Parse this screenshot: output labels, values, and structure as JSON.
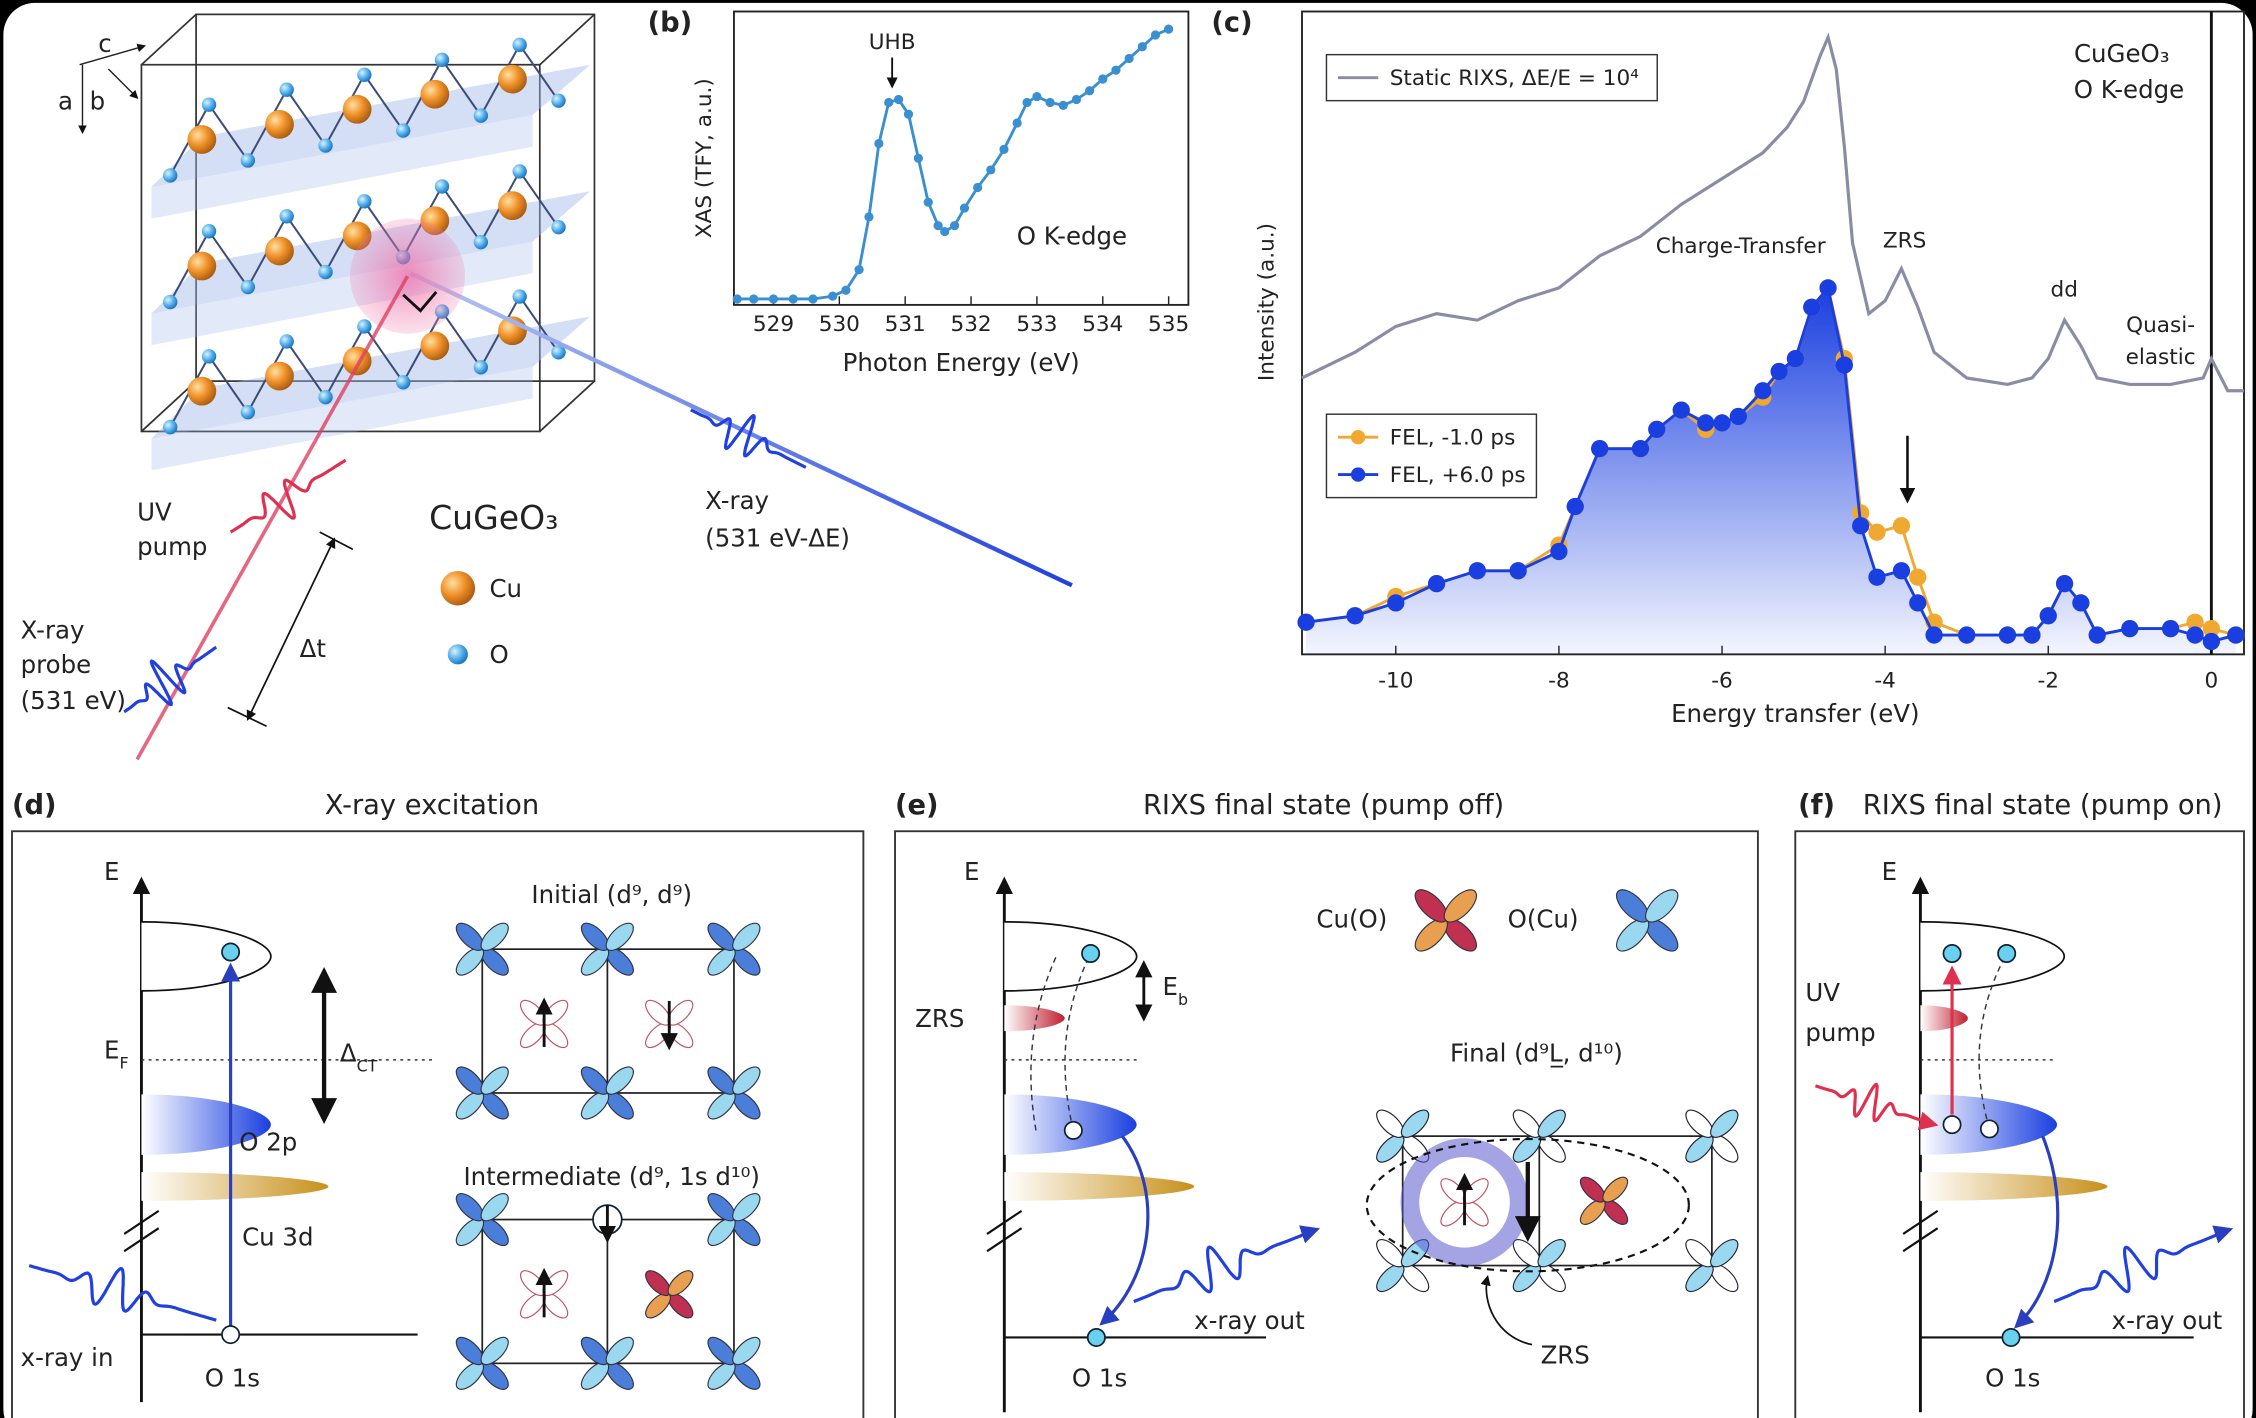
{
  "chart_data": [
    {
      "type": "line",
      "panel_label": "(b)",
      "y_label": "XAS (TFY, a.u.)",
      "x_label": "Photon Energy (eV)",
      "annotations": [
        "UHB",
        "O K-edge"
      ],
      "color": "#3a8fd0",
      "x": [
        528.45,
        528.7,
        529,
        529.3,
        529.6,
        529.9,
        530.1,
        530.3,
        530.45,
        530.6,
        530.75,
        530.9,
        531.05,
        531.2,
        531.35,
        531.5,
        531.6,
        531.75,
        531.9,
        532.1,
        532.3,
        532.5,
        532.7,
        532.85,
        533,
        533.2,
        533.4,
        533.6,
        533.8,
        534,
        534.2,
        534.4,
        534.6,
        534.8,
        535
      ],
      "values": [
        0.02,
        0.02,
        0.02,
        0.02,
        0.02,
        0.03,
        0.05,
        0.12,
        0.3,
        0.55,
        0.69,
        0.7,
        0.65,
        0.5,
        0.35,
        0.27,
        0.25,
        0.27,
        0.33,
        0.4,
        0.46,
        0.53,
        0.62,
        0.69,
        0.71,
        0.69,
        0.68,
        0.7,
        0.73,
        0.77,
        0.8,
        0.84,
        0.88,
        0.92,
        0.94
      ],
      "xlim": [
        528.4,
        535.3
      ],
      "ylim": [
        0,
        1
      ],
      "xticks": [
        529,
        530,
        531,
        532,
        533,
        534,
        535
      ]
    },
    {
      "type": "line",
      "panel_label": "(c)",
      "y_label": "Intensity (a.u.)",
      "x_label": "Energy transfer (eV)",
      "annotations": {
        "charge_transfer": "Charge-Transfer",
        "zrs": "ZRS",
        "dd": "dd",
        "quasi_elastic": [
          "Quasi-",
          "elastic"
        ],
        "material": "CuGeO₃",
        "edge": "O K-edge"
      },
      "series": [
        {
          "name": "Static RIXS, ΔE/E = 10⁴",
          "color": "#8a8ca6",
          "markers": false,
          "x": [
            -11.15,
            -10.5,
            -10,
            -9.5,
            -9,
            -8.5,
            -8,
            -7.5,
            -7,
            -6.5,
            -6,
            -5.5,
            -5.2,
            -5,
            -4.8,
            -4.7,
            -4.6,
            -4.5,
            -4.4,
            -4.2,
            -4,
            -3.8,
            -3.6,
            -3.4,
            -3,
            -2.5,
            -2.2,
            -2,
            -1.8,
            -1.6,
            -1.4,
            -1,
            -0.5,
            -0.1,
            0,
            0.2,
            0.4
          ],
          "values": [
            0.43,
            0.47,
            0.51,
            0.53,
            0.52,
            0.55,
            0.57,
            0.62,
            0.65,
            0.7,
            0.74,
            0.78,
            0.82,
            0.86,
            0.93,
            0.96,
            0.91,
            0.79,
            0.64,
            0.53,
            0.55,
            0.6,
            0.54,
            0.47,
            0.43,
            0.42,
            0.43,
            0.46,
            0.52,
            0.48,
            0.43,
            0.42,
            0.42,
            0.43,
            0.46,
            0.41,
            0.41
          ]
        },
        {
          "name": "FEL, -1.0 ps",
          "color": "#f0a830",
          "markers": true,
          "x": [
            -11.1,
            -10.5,
            -10,
            -9.5,
            -9,
            -8.5,
            -8,
            -7.8,
            -7.5,
            -7,
            -6.8,
            -6.5,
            -6.2,
            -6,
            -5.8,
            -5.5,
            -5.3,
            -5.1,
            -4.9,
            -4.7,
            -4.5,
            -4.3,
            -4.1,
            -3.8,
            -3.6,
            -3.4,
            -3,
            -2.5,
            -2.2,
            -2,
            -1.8,
            -1.6,
            -1.4,
            -1,
            -0.5,
            -0.2,
            0,
            0.3
          ],
          "values": [
            0.05,
            0.06,
            0.09,
            0.11,
            0.13,
            0.13,
            0.17,
            0.23,
            0.32,
            0.32,
            0.35,
            0.38,
            0.35,
            0.36,
            0.37,
            0.4,
            0.44,
            0.46,
            0.54,
            0.57,
            0.46,
            0.22,
            0.19,
            0.2,
            0.12,
            0.05,
            0.03,
            0.03,
            0.03,
            0.06,
            0.11,
            0.08,
            0.03,
            0.04,
            0.04,
            0.05,
            0.04,
            0.03
          ]
        },
        {
          "name": "FEL, +6.0 ps",
          "color": "#1a3fe0",
          "markers": true,
          "area": true,
          "x": [
            -11.1,
            -10.5,
            -10,
            -9.5,
            -9,
            -8.5,
            -8,
            -7.8,
            -7.5,
            -7,
            -6.8,
            -6.5,
            -6.2,
            -6,
            -5.8,
            -5.5,
            -5.3,
            -5.1,
            -4.9,
            -4.7,
            -4.5,
            -4.3,
            -4.1,
            -3.8,
            -3.6,
            -3.4,
            -3,
            -2.5,
            -2.2,
            -2,
            -1.8,
            -1.6,
            -1.4,
            -1,
            -0.5,
            -0.2,
            0,
            0.3
          ],
          "values": [
            0.05,
            0.06,
            0.08,
            0.11,
            0.13,
            0.13,
            0.16,
            0.23,
            0.32,
            0.32,
            0.35,
            0.38,
            0.36,
            0.36,
            0.37,
            0.41,
            0.44,
            0.46,
            0.54,
            0.57,
            0.45,
            0.2,
            0.12,
            0.13,
            0.08,
            0.03,
            0.03,
            0.03,
            0.03,
            0.06,
            0.11,
            0.08,
            0.03,
            0.04,
            0.04,
            0.03,
            0.02,
            0.03
          ]
        }
      ],
      "xlim": [
        -11.15,
        0.4
      ],
      "ylim": [
        0,
        1
      ],
      "xticks": [
        -10,
        -8,
        -6,
        -4,
        -2,
        0
      ]
    }
  ],
  "panel_a": {
    "axis_labels": [
      "c",
      "a",
      "b"
    ],
    "uv_pump": [
      "UV",
      "pump"
    ],
    "xray_probe": [
      "X-ray",
      "probe",
      "(531 eV)"
    ],
    "delay": "Δt",
    "material": "CuGeO₃",
    "legend": [
      "Cu",
      "O"
    ],
    "xray_out": [
      "X-ray",
      "(531 eV-ΔE)"
    ]
  },
  "panel_d": {
    "label": "(d)",
    "title": "X-ray excitation",
    "energy": "E",
    "fermi": "E",
    "fermi_sub": "F",
    "o2p": "O 2p",
    "cu3d": "Cu 3d",
    "o1s": "O 1s",
    "xray_in": "x-ray in",
    "gap": "Δ",
    "gap_sub": "CT",
    "initial": "Initial (d⁹, d⁹)",
    "intermediate": "Intermediate (d⁹, 1s d¹⁰)"
  },
  "panel_e": {
    "label": "(e)",
    "title": "RIXS final state (pump off)",
    "energy": "E",
    "binding": "E",
    "binding_sub": "b",
    "zrs": "ZRS",
    "o1s": "O 1s",
    "xray_out": "x-ray out",
    "cu_o": "Cu(O)",
    "o_cu": "O(Cu)",
    "final": "Final (d⁹L̲, d¹⁰)",
    "zrs_label": "ZRS"
  },
  "panel_f": {
    "label": "(f)",
    "title": "RIXS final state (pump on)",
    "energy": "E",
    "uv_pump": [
      "UV",
      "pump"
    ],
    "o1s": "O 1s",
    "xray_out": "x-ray out"
  }
}
